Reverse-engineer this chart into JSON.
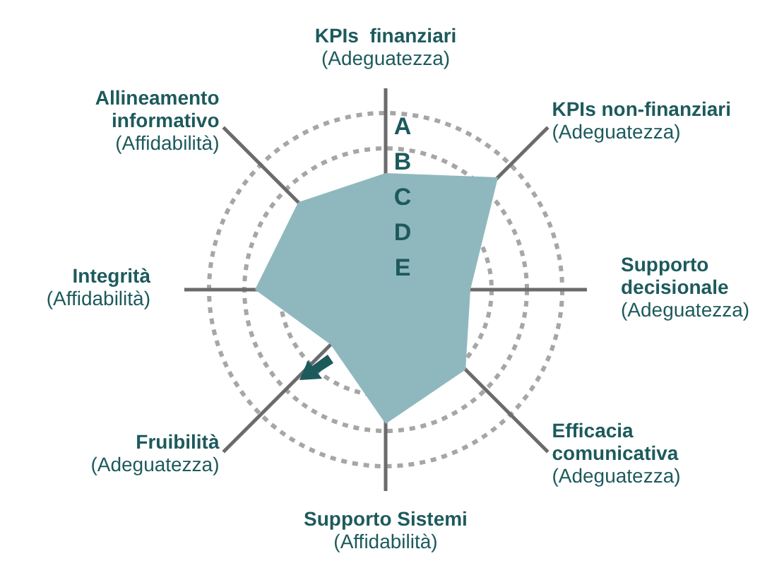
{
  "chart_data": {
    "type": "radar",
    "categories": [
      "KPIs  finanziari\n(Adeguatezza)",
      "KPIs non-finanziari\n(Adeguatezza)",
      "Supporto\ndecisionale\n(Adeguatezza)",
      "Efficacia\ncomunicativa\n(Adeguatezza)",
      "Supporto Sistemi\n(Affidabilità)",
      "Fruibilità\n(Adeguatezza)",
      "Integrità\n(Affidabilità)",
      "Allineamento\ninformativo\n(Affidabilità)"
    ],
    "series": [
      {
        "color": "#8fb8be",
        "values": [
          3.3,
          4.5,
          2.4,
          3.2,
          3.8,
          2.2,
          3.7,
          3.5
        ]
      }
    ],
    "ylim": [
      0,
      5
    ],
    "yticks": [
      {
        "value": 1,
        "label": "E"
      },
      {
        "value": 2,
        "label": "D"
      },
      {
        "value": 3,
        "label": "C"
      },
      {
        "value": 4,
        "label": "B"
      },
      {
        "value": 5,
        "label": "A"
      }
    ],
    "grid": true,
    "legend": false,
    "marker": "none"
  }
}
